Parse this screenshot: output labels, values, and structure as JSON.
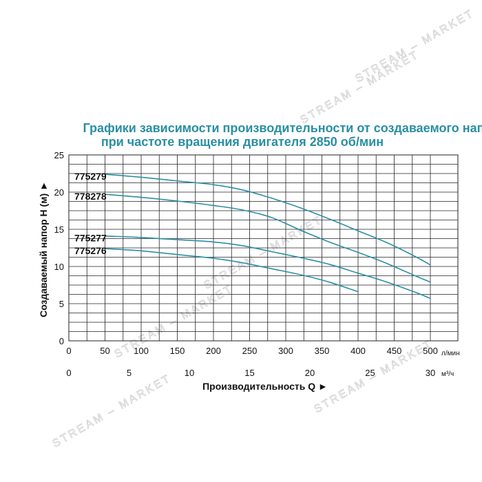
{
  "chart_data": {
    "type": "line",
    "title": "Графики зависимости производительности от создаваемого напора",
    "subtitle": "при частоте вращения двигателя 2850 об/мин",
    "xlabel": "Производительность Q ►",
    "ylabel": "Создаваемый напор H (м) ►",
    "x_unit_top": "л/мин",
    "x_unit_bottom": "м³/ч",
    "xlim": [
      0,
      500
    ],
    "ylim": [
      0,
      25
    ],
    "x_ticks_lmin": [
      "0",
      "50",
      "100",
      "150",
      "200",
      "250",
      "300",
      "350",
      "400",
      "450",
      "500"
    ],
    "x_ticks_m3h": [
      "0",
      "5",
      "10",
      "15",
      "20",
      "25",
      "30"
    ],
    "y_ticks": [
      "0",
      "5",
      "10",
      "15",
      "20",
      "25"
    ],
    "grid": true,
    "series": [
      {
        "name": "775279",
        "x": [
          50,
          100,
          150,
          200,
          240,
          280,
          320,
          360,
          400,
          440,
          480,
          500
        ],
        "y": [
          22.4,
          22.0,
          21.5,
          21.0,
          20.3,
          19.2,
          17.9,
          16.4,
          14.8,
          13.2,
          11.3,
          10.2
        ]
      },
      {
        "name": "778278",
        "x": [
          50,
          100,
          150,
          200,
          240,
          280,
          320,
          360,
          400,
          440,
          480,
          500
        ],
        "y": [
          19.7,
          19.3,
          18.8,
          18.2,
          17.6,
          16.6,
          14.9,
          13.3,
          11.9,
          10.4,
          8.7,
          7.9
        ]
      },
      {
        "name": "775277",
        "x": [
          50,
          100,
          150,
          200,
          240,
          280,
          320,
          360,
          400,
          440,
          480,
          500
        ],
        "y": [
          14.1,
          13.9,
          13.6,
          13.3,
          12.8,
          12.0,
          11.2,
          10.3,
          9.1,
          7.9,
          6.5,
          5.7
        ]
      },
      {
        "name": "775276",
        "x": [
          50,
          100,
          150,
          200,
          240,
          280,
          320,
          360,
          400
        ],
        "y": [
          12.4,
          12.1,
          11.6,
          11.1,
          10.5,
          9.7,
          8.9,
          7.9,
          6.6
        ]
      }
    ]
  },
  "watermark": "STREAM – MARKET"
}
